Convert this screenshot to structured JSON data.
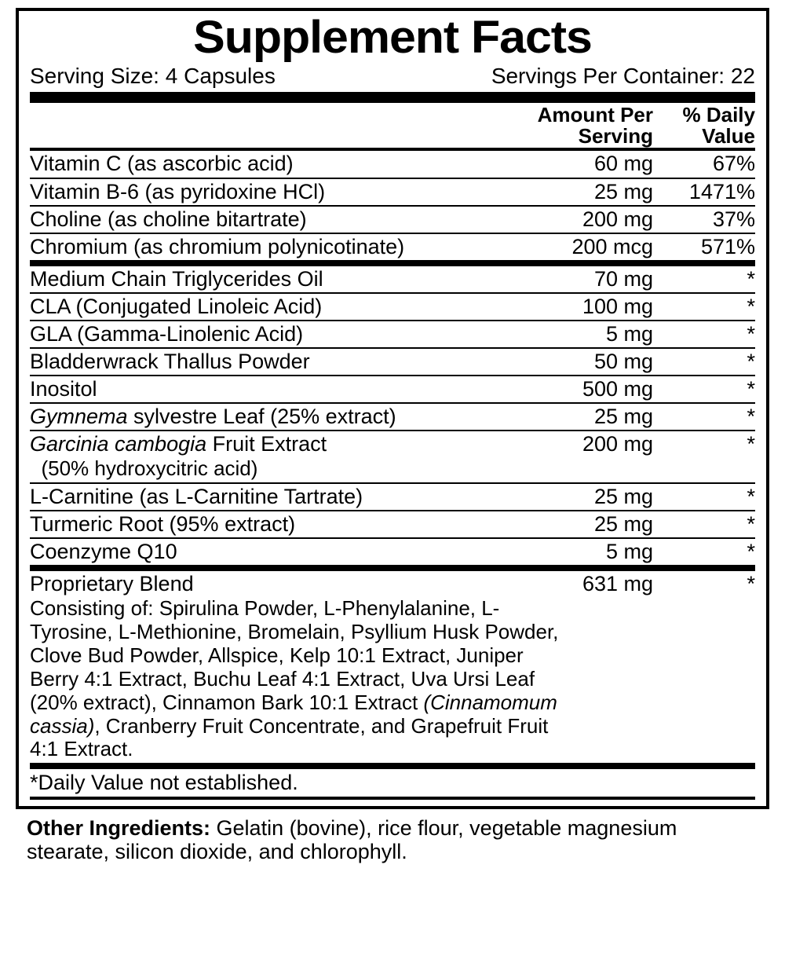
{
  "title": "Supplement Facts",
  "serving": {
    "size_label": "Serving Size: 4 Capsules",
    "per_container_label": "Servings Per Container: 22"
  },
  "headers": {
    "amount_l1": "Amount Per",
    "amount_l2": "Serving",
    "dv_l1": "% Daily",
    "dv_l2": "Value"
  },
  "section1": [
    {
      "name": "Vitamin C (as ascorbic acid)",
      "amount": "60 mg",
      "dv": "67%"
    },
    {
      "name": "Vitamin B-6 (as pyridoxine HCl)",
      "amount": "25 mg",
      "dv": "1471%"
    },
    {
      "name": "Choline (as choline bitartrate)",
      "amount": "200 mg",
      "dv": "37%"
    },
    {
      "name": "Chromium (as chromium polynicotinate)",
      "amount": "200 mcg",
      "dv": "571%"
    }
  ],
  "section2": [
    {
      "name": "Medium Chain Triglycerides Oil",
      "amount": "70 mg",
      "dv": "*"
    },
    {
      "name": "CLA (Conjugated Linoleic Acid)",
      "amount": "100 mg",
      "dv": "*"
    },
    {
      "name": "GLA (Gamma-Linolenic Acid)",
      "amount": "5 mg",
      "dv": "*"
    },
    {
      "name": "Bladderwrack Thallus Powder",
      "amount": "50 mg",
      "dv": "*"
    },
    {
      "name": "Inositol",
      "amount": "500 mg",
      "dv": "*"
    },
    {
      "name_html": "<i>Gymnema</i> sylvestre Leaf (25% extract)",
      "amount": "25 mg",
      "dv": "*"
    },
    {
      "name_html": "<i>Garcinia cambogia</i> Fruit Extract",
      "sub": "  (50% hydroxycitric acid)",
      "amount": "200 mg",
      "dv": "*"
    },
    {
      "name": "L-Carnitine (as L-Carnitine Tartrate)",
      "amount": "25 mg",
      "dv": "*"
    },
    {
      "name": "Turmeric Root (95% extract)",
      "amount": "25 mg",
      "dv": "*"
    },
    {
      "name": "Coenzyme Q10",
      "amount": "5 mg",
      "dv": "*"
    }
  ],
  "blend": {
    "name": "Proprietary Blend",
    "amount": "631 mg",
    "dv": "*",
    "desc_html": "Consisting of: Spirulina Powder, L-Phenylalanine, L-Tyrosine, L-Methionine, Bromelain, Psyllium Husk Powder, Clove Bud Powder, Allspice, Kelp 10:1 Extract, Juniper Berry 4:1 Extract, Buchu Leaf 4:1 Extract, Uva Ursi Leaf (20% extract), Cinnamon Bark 10:1 Extract <i>(Cinnamomum cassia)</i>, Cranberry Fruit Concentrate, and Grapefruit Fruit 4:1 Extract."
  },
  "dv_note": "*Daily Value not established.",
  "other_label": "Other Ingredients:",
  "other_text": " Gelatin (bovine), rice flour, vegetable magnesium stearate, silicon dioxide, and chlorophyll."
}
